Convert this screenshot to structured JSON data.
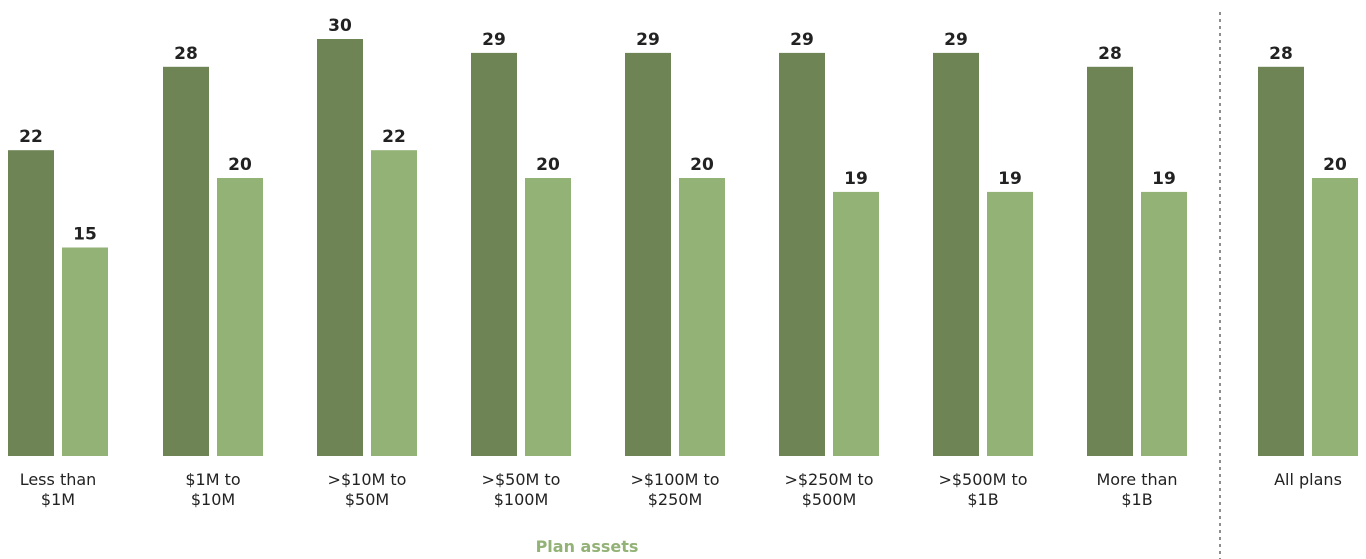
{
  "chart_data": {
    "type": "bar",
    "categories": [
      [
        "Less than",
        "$1M"
      ],
      [
        "$1M to",
        "$10M"
      ],
      [
        ">$10M to",
        "$50M"
      ],
      [
        ">$50M to",
        "$100M"
      ],
      [
        ">$100M to",
        "$250M"
      ],
      [
        ">$250M to",
        "$500M"
      ],
      [
        ">$500M to",
        "$1B"
      ],
      [
        "More than",
        "$1B"
      ],
      [
        "All plans"
      ]
    ],
    "series": [
      {
        "values": [
          22,
          28,
          30,
          29,
          29,
          29,
          29,
          28,
          28
        ],
        "color": "#6e8454"
      },
      {
        "values": [
          15,
          20,
          22,
          20,
          20,
          19,
          19,
          19,
          20
        ],
        "color": "#93b276"
      }
    ],
    "xlabel": "Plan assets",
    "xlabel_color": "#93b276",
    "separator_before_category": 8,
    "grid": false,
    "legend": "none"
  }
}
